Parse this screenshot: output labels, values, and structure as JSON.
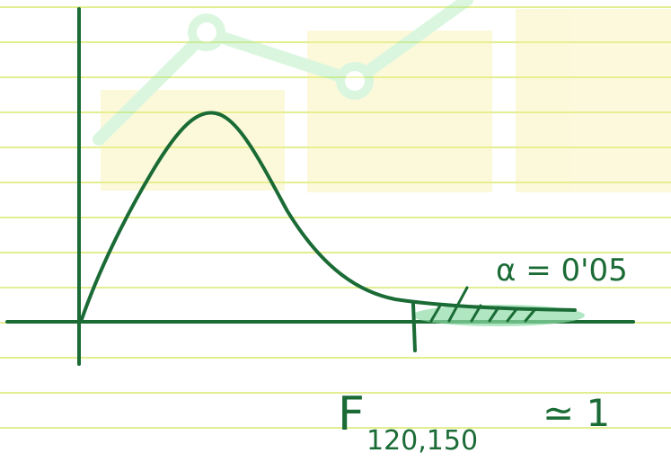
{
  "annotations": {
    "alpha": "α = 0'05",
    "statistic": "F",
    "subscript": "120,150",
    "approx": "≃ 1"
  }
}
